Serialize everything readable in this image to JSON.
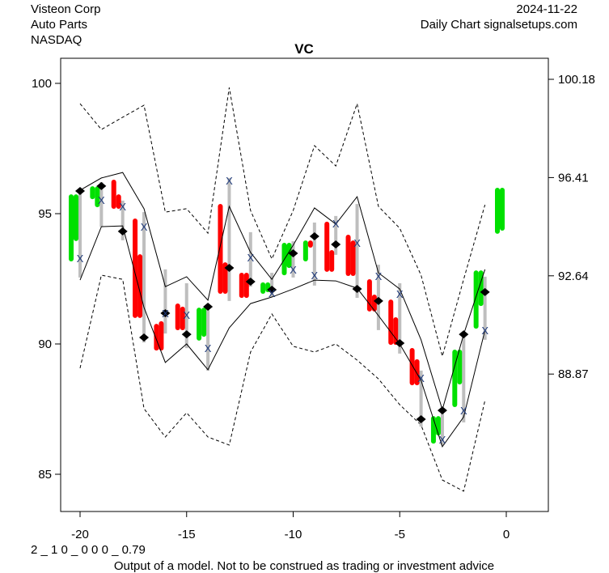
{
  "header": {
    "company": "Visteon Corp",
    "sector": "Auto Parts",
    "exchange": "NASDAQ",
    "date": "2024-11-22",
    "source": "Daily Chart signalsetups.com"
  },
  "footer": {
    "code": "2 _ 1 0 _ 0 0 0 _ 0.79",
    "disclaimer": "Output of a model. Not to be construed as trading or investment advice"
  },
  "chart_data": {
    "type": "candlestick-band",
    "title": "VC",
    "xlim": [
      -21,
      2
    ],
    "ylim": [
      83.6,
      101
    ],
    "x_ticks": [
      -20,
      -15,
      -10,
      -5,
      0
    ],
    "x_tick_labels": [
      "-20",
      "-15",
      "-10",
      "-5",
      "0"
    ],
    "y_ticks": [
      85,
      90,
      95,
      100
    ],
    "y_tick_labels": [
      "85",
      "90",
      "95",
      "100"
    ],
    "y2_ticks": [
      100.18,
      96.41,
      92.64,
      88.87
    ],
    "y2_tick_labels": [
      "100.18",
      "96.41",
      "92.64",
      "88.87"
    ],
    "colors": {
      "up": "#00e000",
      "down": "#ff0000",
      "range": "#bebebe",
      "marker": "#000000",
      "x_marker": "#1f3a7a"
    },
    "days": [
      {
        "x": -20,
        "dir": "up",
        "b1": [
          93.26,
          95.65
        ],
        "b2": [
          94.04,
          95.65
        ],
        "range": [
          92.55,
          95.96
        ],
        "diamond": 95.87,
        "xmark": 93.29
      },
      {
        "x": -19,
        "dir": "up",
        "b1": [
          95.65,
          95.96
        ],
        "b2": [
          95.34,
          95.96
        ],
        "range": [
          94.5,
          96.21
        ],
        "diamond": 96.06,
        "xmark": 95.53
      },
      {
        "x": -18,
        "dir": "down",
        "b1": [
          95.28,
          96.21
        ],
        "b2": [
          95.28,
          95.65
        ],
        "range": [
          93.98,
          95.5
        ],
        "diamond": 94.32,
        "xmark": 95.28
      },
      {
        "x": -17,
        "dir": "down",
        "b1": [
          91.09,
          94.72
        ],
        "b2": [
          91.09,
          93.35
        ],
        "range": [
          90.06,
          95.06
        ],
        "diamond": 90.25,
        "xmark": 94.5
      },
      {
        "x": -16,
        "dir": "down",
        "b1": [
          89.84,
          90.68
        ],
        "b2": [
          89.84,
          90.78
        ],
        "range": [
          90.4,
          92.86
        ],
        "diamond": 91.18,
        "xmark": 91.18
      },
      {
        "x": -15,
        "dir": "down",
        "b1": [
          90.62,
          91.46
        ],
        "b2": [
          90.62,
          91.34
        ],
        "range": [
          89.84,
          92.33
        ],
        "diamond": 90.37,
        "xmark": 91.12
      },
      {
        "x": -14,
        "dir": "up",
        "b1": [
          90.22,
          91.3
        ],
        "b2": [
          90.37,
          91.3
        ],
        "range": [
          88.98,
          91.49
        ],
        "diamond": 91.43,
        "xmark": 89.84
      },
      {
        "x": -13,
        "dir": "down",
        "b1": [
          92.02,
          95.28
        ],
        "b2": [
          92.02,
          93.04
        ],
        "range": [
          91.65,
          96.37
        ],
        "diamond": 92.92,
        "xmark": 96.27
      },
      {
        "x": -12,
        "dir": "down",
        "b1": [
          91.86,
          92.64
        ],
        "b2": [
          91.86,
          92.64
        ],
        "range": [
          92.2,
          94.29
        ],
        "diamond": 92.39,
        "xmark": 93.32
      },
      {
        "x": -11,
        "dir": "up",
        "b1": [
          92.02,
          92.27
        ],
        "b2": [
          92.08,
          92.27
        ],
        "range": [
          91.8,
          92.73
        ],
        "diamond": 92.08,
        "xmark": 91.96
      },
      {
        "x": -10,
        "dir": "up",
        "b1": [
          92.73,
          93.79
        ],
        "b2": [
          93.01,
          93.79
        ],
        "range": [
          92.55,
          93.94
        ],
        "diamond": 93.48,
        "xmark": 92.86
      },
      {
        "x": -9,
        "dir": "up",
        "b1": [
          93.26,
          93.88
        ],
        "b2": [
          93.79,
          93.88
        ],
        "b2dir": "down",
        "range": [
          92.24,
          94.66
        ],
        "diamond": 94.13,
        "xmark": 92.64
      },
      {
        "x": -8,
        "dir": "down",
        "b1": [
          92.86,
          94.6
        ],
        "b2": [
          92.86,
          93.51
        ],
        "range": [
          93.42,
          94.91
        ],
        "diamond": 93.82,
        "xmark": 94.63
      },
      {
        "x": -7,
        "dir": "down",
        "b1": [
          92.7,
          94.1
        ],
        "b2": [
          92.7,
          93.88
        ],
        "range": [
          91.77,
          95.37
        ],
        "diamond": 92.11,
        "xmark": 93.88
      },
      {
        "x": -6,
        "dir": "down",
        "b1": [
          91.34,
          92.39
        ],
        "b2": [
          91.34,
          91.8
        ],
        "range": [
          90.53,
          93.04
        ],
        "diamond": 91.65,
        "xmark": 92.61
      },
      {
        "x": -5,
        "dir": "down",
        "b1": [
          90.06,
          91.61
        ],
        "b2": [
          90.06,
          90.93
        ],
        "range": [
          89.63,
          92.33
        ],
        "diamond": 90.03,
        "xmark": 91.93
      },
      {
        "x": -4,
        "dir": "down",
        "b1": [
          88.51,
          89.75
        ],
        "b2": [
          88.51,
          89.32
        ],
        "range": [
          86.83,
          88.98
        ],
        "diamond": 87.11,
        "xmark": 88.7
      },
      {
        "x": -3,
        "dir": "up",
        "b1": [
          86.27,
          87.14
        ],
        "b2": [
          86.58,
          87.14
        ],
        "range": [
          86.12,
          87.45
        ],
        "diamond": 87.45,
        "xmark": 86.34
      },
      {
        "x": -2,
        "dir": "up",
        "b1": [
          87.67,
          89.69
        ],
        "b2": [
          88.54,
          89.69
        ],
        "range": [
          86.99,
          90.37
        ],
        "diamond": 90.37,
        "xmark": 87.45
      },
      {
        "x": -1,
        "dir": "up",
        "b1": [
          90.68,
          92.73
        ],
        "b2": [
          91.55,
          92.73
        ],
        "range": [
          90.16,
          92.58
        ],
        "diamond": 91.99,
        "xmark": 90.53
      },
      {
        "x": 0,
        "dir": "up",
        "b1": [
          94.32,
          95.9
        ],
        "b2": [
          94.44,
          95.9
        ]
      }
    ],
    "bands_x": [
      -20,
      -19,
      -18,
      -17,
      -16,
      -15,
      -14,
      -13,
      -12,
      -11,
      -10,
      -9,
      -8,
      -7,
      -6,
      -5,
      -4,
      -3,
      -2,
      -1
    ],
    "upper_solid": [
      95.9,
      96.37,
      96.58,
      95.19,
      92.2,
      92.58,
      91.68,
      95.28,
      93.51,
      92.48,
      93.79,
      95.22,
      94.6,
      95.65,
      92.73,
      92.11,
      90.16,
      87.48,
      90.37,
      92.86
    ],
    "lower_solid": [
      92.45,
      94.5,
      94.53,
      91.4,
      89.29,
      90.0,
      89.01,
      90.62,
      91.55,
      91.8,
      92.11,
      92.45,
      92.42,
      92.14,
      91.09,
      90.0,
      88.6,
      86.06,
      87.2,
      90.53
    ],
    "upper_dashed": [
      99.22,
      98.23,
      98.7,
      99.16,
      95.06,
      95.19,
      94.25,
      99.84,
      95.12,
      93.26,
      95.12,
      97.61,
      96.83,
      99.22,
      95.28,
      94.44,
      92.64,
      89.53,
      92.48,
      95.34
    ],
    "lower_dashed": [
      89.07,
      92.64,
      92.48,
      87.52,
      86.43,
      87.36,
      86.43,
      86.12,
      89.69,
      91.15,
      89.91,
      89.69,
      90.0,
      89.38,
      88.66,
      87.67,
      86.89,
      84.78,
      84.35,
      87.83
    ]
  }
}
